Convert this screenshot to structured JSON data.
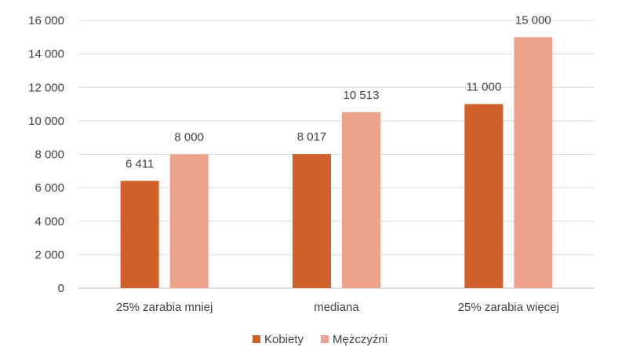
{
  "chart_data": {
    "type": "bar",
    "title": "",
    "xlabel": "",
    "ylabel": "",
    "categories": [
      "25% zarabia mniej",
      "mediana",
      "25% zarabia więcej"
    ],
    "series": [
      {
        "name": "Kobiety",
        "values": [
          6411,
          8017,
          11000
        ],
        "labels": [
          "6 411",
          "8 017",
          "11 000"
        ],
        "color": "#d0612b"
      },
      {
        "name": "Mężczyźni",
        "values": [
          8000,
          10513,
          15000
        ],
        "labels": [
          "8 000",
          "10 513",
          "15 000"
        ],
        "color": "#eda28a"
      }
    ],
    "ylim": [
      0,
      16000
    ],
    "yticks": [
      0,
      2000,
      4000,
      6000,
      8000,
      10000,
      12000,
      14000,
      16000
    ],
    "ytick_labels": [
      "0",
      "2 000",
      "4 000",
      "6 000",
      "8 000",
      "10 000",
      "12 000",
      "14 000",
      "16 000"
    ],
    "grid": true,
    "legend_position": "bottom"
  }
}
